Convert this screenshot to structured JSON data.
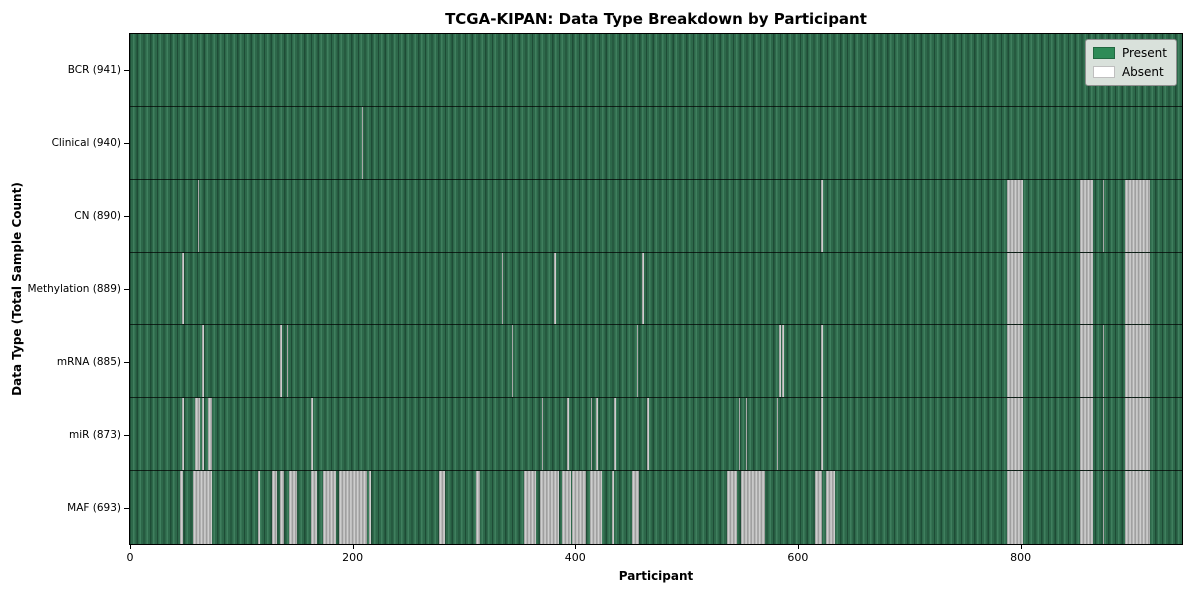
{
  "figure": {
    "title": "TCGA-KIPAN: Data Type Breakdown by Participant",
    "xlabel": "Participant",
    "ylabel": "Data Type (Total Sample Count)"
  },
  "legend": {
    "items": [
      {
        "name": "present",
        "label": "Present",
        "color": "#2e8b57"
      },
      {
        "name": "absent",
        "label": "Absent",
        "color": "#ffffff"
      }
    ]
  },
  "chart_data": {
    "type": "heatmap",
    "title": "TCGA-KIPAN: Data Type Breakdown by Participant",
    "xlabel": "Participant",
    "ylabel": "Data Type (Total Sample Count)",
    "legend_position": "upper right",
    "present_color": "#2e8b57",
    "absent_color": "#ffffff",
    "x_axis": {
      "ticks": [
        0,
        200,
        400,
        600,
        800
      ],
      "max": 945
    },
    "rows": [
      {
        "label": "BCR (941)",
        "data_type": "BCR",
        "total_sample_count": 941,
        "absent_ranges": []
      },
      {
        "label": "Clinical (940)",
        "data_type": "Clinical",
        "total_sample_count": 940,
        "absent_ranges": [
          [
            208,
            209
          ]
        ]
      },
      {
        "label": "CN (890)",
        "data_type": "CN",
        "total_sample_count": 890,
        "absent_ranges": [
          [
            61,
            62
          ],
          [
            621,
            622
          ],
          [
            788,
            802
          ],
          [
            853,
            865
          ],
          [
            874,
            875
          ],
          [
            894,
            916
          ]
        ]
      },
      {
        "label": "Methylation (889)",
        "data_type": "Methylation",
        "total_sample_count": 889,
        "absent_ranges": [
          [
            47,
            48
          ],
          [
            334,
            335
          ],
          [
            381,
            382
          ],
          [
            460,
            461
          ],
          [
            788,
            802
          ],
          [
            853,
            865
          ],
          [
            894,
            916
          ]
        ]
      },
      {
        "label": "mRNA (885)",
        "data_type": "mRNA",
        "total_sample_count": 885,
        "absent_ranges": [
          [
            65,
            66
          ],
          [
            135,
            136
          ],
          [
            141,
            142
          ],
          [
            343,
            344
          ],
          [
            455,
            456
          ],
          [
            583,
            584
          ],
          [
            586,
            587
          ],
          [
            621,
            622
          ],
          [
            788,
            802
          ],
          [
            853,
            865
          ],
          [
            874,
            875
          ],
          [
            894,
            916
          ]
        ]
      },
      {
        "label": "miR (873)",
        "data_type": "miR",
        "total_sample_count": 873,
        "absent_ranges": [
          [
            47,
            48
          ],
          [
            58,
            63
          ],
          [
            65,
            66
          ],
          [
            70,
            74
          ],
          [
            163,
            164
          ],
          [
            370,
            371
          ],
          [
            393,
            394
          ],
          [
            414,
            415
          ],
          [
            419,
            420
          ],
          [
            435,
            436
          ],
          [
            464,
            466
          ],
          [
            547,
            548
          ],
          [
            553,
            554
          ],
          [
            581,
            582
          ],
          [
            621,
            622
          ],
          [
            788,
            802
          ],
          [
            853,
            865
          ],
          [
            874,
            875
          ],
          [
            894,
            916
          ]
        ]
      },
      {
        "label": "MAF (693)",
        "data_type": "MAF",
        "total_sample_count": 693,
        "absent_ranges": [
          [
            45,
            48
          ],
          [
            57,
            74
          ],
          [
            115,
            116
          ],
          [
            128,
            132
          ],
          [
            135,
            138
          ],
          [
            143,
            150
          ],
          [
            163,
            168
          ],
          [
            173,
            185
          ],
          [
            188,
            213
          ],
          [
            215,
            216
          ],
          [
            278,
            283
          ],
          [
            311,
            314
          ],
          [
            354,
            365
          ],
          [
            368,
            385
          ],
          [
            388,
            396
          ],
          [
            397,
            410
          ],
          [
            413,
            424
          ],
          [
            433,
            434
          ],
          [
            451,
            457
          ],
          [
            536,
            545
          ],
          [
            549,
            570
          ],
          [
            615,
            622
          ],
          [
            625,
            633
          ],
          [
            788,
            802
          ],
          [
            853,
            865
          ],
          [
            874,
            875
          ],
          [
            894,
            916
          ]
        ]
      }
    ]
  }
}
